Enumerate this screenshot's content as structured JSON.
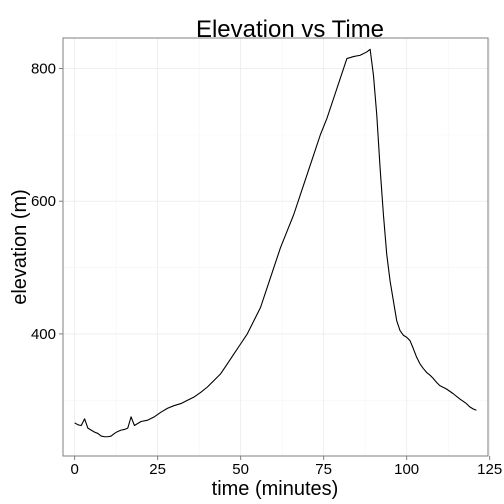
{
  "chart_data": {
    "type": "line",
    "title": "Elevation vs Time",
    "xlabel": "time (minutes)",
    "ylabel": "elevation (m)",
    "xlim": [
      -3.5,
      124.5
    ],
    "ylim": [
      216,
      846
    ],
    "x_ticks": [
      0,
      25,
      50,
      75,
      100,
      125
    ],
    "y_ticks": [
      400,
      600,
      800
    ],
    "x_tick_labels": [
      "0",
      "25",
      "50",
      "75",
      "100",
      "125"
    ],
    "y_tick_labels": [
      "400",
      "600",
      "800"
    ],
    "grid": true,
    "legend": "none",
    "colors": {
      "line": "#000000",
      "grid_major": "#ebebeb",
      "grid_minor": "#f5f5f5",
      "panel_border": "#7f7f7f",
      "tick": "#7f7f7f",
      "background": "#ffffff"
    },
    "series": [
      {
        "x": [
          0,
          1,
          2,
          3,
          4,
          5,
          6,
          7,
          8,
          9,
          10,
          11,
          12,
          13,
          14,
          15,
          16,
          17,
          18,
          19,
          20,
          22,
          24,
          26,
          28,
          30,
          32,
          34,
          36,
          38,
          40,
          42,
          44,
          46,
          48,
          50,
          52,
          54,
          56,
          58,
          60,
          62,
          64,
          66,
          68,
          70,
          72,
          74,
          76,
          78,
          80,
          82,
          84,
          86,
          88,
          89,
          90,
          91,
          92,
          93,
          94,
          95,
          96,
          97,
          98,
          99,
          100,
          101,
          102,
          103,
          104,
          105,
          106,
          107,
          108,
          109,
          110,
          112,
          114,
          116,
          118,
          119,
          120,
          121
        ],
        "y": [
          266,
          263,
          262,
          272,
          258,
          255,
          252,
          250,
          246,
          245,
          245,
          246,
          250,
          253,
          255,
          256,
          258,
          275,
          262,
          265,
          268,
          270,
          275,
          282,
          288,
          292,
          295,
          300,
          305,
          312,
          320,
          330,
          340,
          355,
          370,
          385,
          400,
          420,
          440,
          470,
          500,
          530,
          555,
          580,
          610,
          640,
          670,
          700,
          725,
          755,
          785,
          815,
          818,
          820,
          825,
          829,
          790,
          730,
          650,
          580,
          520,
          480,
          450,
          420,
          405,
          398,
          395,
          390,
          378,
          365,
          355,
          348,
          342,
          338,
          333,
          327,
          322,
          317,
          310,
          302,
          295,
          290,
          287,
          285
        ]
      }
    ]
  }
}
